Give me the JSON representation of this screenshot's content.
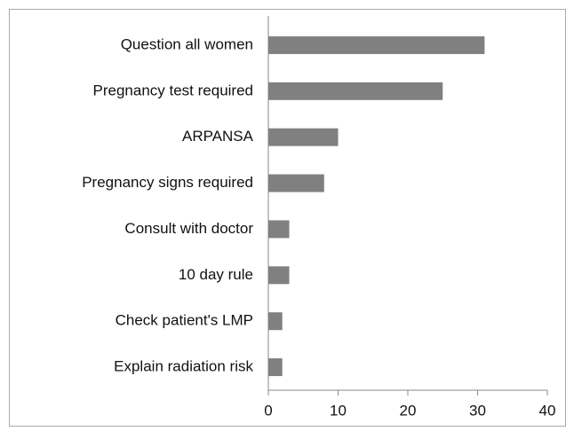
{
  "chart_data": {
    "type": "hbar",
    "categories": [
      "Question all women",
      "Pregnancy test required",
      "ARPANSA",
      "Pregnancy signs required",
      "Consult with doctor",
      "10 day rule",
      "Check patient's LMP",
      "Explain radiation risk"
    ],
    "values": [
      31,
      25,
      10,
      8,
      3,
      3,
      2,
      2
    ],
    "color": "#808080",
    "xlim": [
      0,
      40
    ],
    "xticks": [
      0,
      10,
      20,
      30,
      40
    ],
    "grid": false
  }
}
